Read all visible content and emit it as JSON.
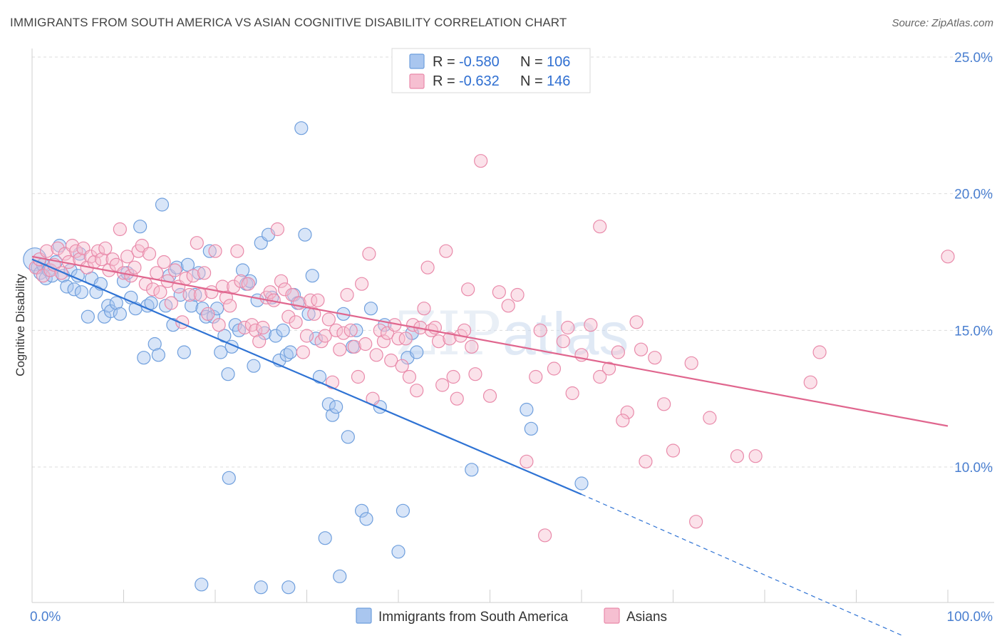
{
  "title": "IMMIGRANTS FROM SOUTH AMERICA VS ASIAN COGNITIVE DISABILITY CORRELATION CHART",
  "source": "Source: ZipAtlas.com",
  "watermark": {
    "zip": "ZIP",
    "atlas": "atlas"
  },
  "colors": {
    "blue": "#6f9fdd",
    "blue_fill": "#a9c6ef",
    "blue_line": "#2f73d4",
    "pink": "#e98aaa",
    "pink_fill": "#f6bfd1",
    "pink_line": "#e0668e",
    "grid": "#dcdcdc",
    "tick_text": "#4a7fd0"
  },
  "legend": {
    "rows": [
      {
        "r_label": "R =",
        "r_value": "-0.580",
        "n_label": "N =",
        "n_value": "106"
      },
      {
        "r_label": "R =",
        "r_value": "-0.632",
        "n_label": "N =",
        "n_value": "146"
      }
    ]
  },
  "chart_data": {
    "type": "scatter",
    "title": "IMMIGRANTS FROM SOUTH AMERICA VS ASIAN COGNITIVE DISABILITY CORRELATION CHART",
    "xlabel": "",
    "ylabel": "Cognitive Disability",
    "xlim": [
      0,
      100
    ],
    "ylim": [
      5.5,
      26.0
    ],
    "x_tick_labels": [
      "0.0%",
      "100.0%"
    ],
    "y_ticks": [
      10,
      15,
      20,
      25
    ],
    "y_tick_labels": [
      "10.0%",
      "15.0%",
      "20.0%",
      "25.0%"
    ],
    "grid": "horizontal dashed",
    "legend_position": "top-center",
    "series": [
      {
        "name": "Immigrants from South America",
        "color": "#6f9fdd",
        "r": -0.58,
        "n": 106,
        "trend": {
          "x0": 0,
          "y0": 17.6,
          "x1": 60,
          "y1": 9.0,
          "dashed_to_x": 100,
          "dashed_to_y": 3.1
        },
        "points": [
          [
            0.3,
            17.6
          ],
          [
            0.6,
            17.3
          ],
          [
            0.9,
            17.1
          ],
          [
            1.2,
            17.4
          ],
          [
            1.5,
            16.9
          ],
          [
            1.8,
            17.2
          ],
          [
            2.2,
            17.0
          ],
          [
            2.6,
            17.5
          ],
          [
            3.0,
            18.1
          ],
          [
            3.4,
            17.0
          ],
          [
            3.8,
            16.6
          ],
          [
            4.2,
            17.2
          ],
          [
            4.6,
            16.5
          ],
          [
            5.0,
            17.0
          ],
          [
            5.4,
            16.4
          ],
          [
            5.2,
            17.8
          ],
          [
            6.1,
            15.5
          ],
          [
            6.5,
            16.9
          ],
          [
            7.0,
            16.4
          ],
          [
            7.5,
            16.7
          ],
          [
            7.9,
            15.5
          ],
          [
            8.3,
            15.9
          ],
          [
            8.6,
            15.7
          ],
          [
            9.2,
            16.0
          ],
          [
            9.6,
            15.6
          ],
          [
            10.0,
            16.8
          ],
          [
            10.4,
            17.1
          ],
          [
            10.8,
            16.2
          ],
          [
            11.3,
            15.8
          ],
          [
            11.8,
            18.8
          ],
          [
            12.2,
            14.0
          ],
          [
            12.6,
            15.9
          ],
          [
            13.0,
            16.0
          ],
          [
            13.4,
            14.5
          ],
          [
            13.8,
            14.1
          ],
          [
            14.2,
            19.6
          ],
          [
            14.6,
            15.9
          ],
          [
            15.0,
            17.0
          ],
          [
            15.4,
            15.2
          ],
          [
            15.8,
            17.3
          ],
          [
            16.2,
            16.3
          ],
          [
            16.6,
            14.2
          ],
          [
            17.0,
            17.4
          ],
          [
            17.4,
            15.9
          ],
          [
            17.8,
            16.3
          ],
          [
            18.2,
            17.1
          ],
          [
            18.6,
            15.8
          ],
          [
            19.0,
            15.5
          ],
          [
            19.4,
            17.9
          ],
          [
            19.8,
            15.5
          ],
          [
            20.2,
            15.8
          ],
          [
            20.6,
            14.2
          ],
          [
            21.0,
            14.8
          ],
          [
            21.4,
            13.4
          ],
          [
            21.8,
            14.4
          ],
          [
            22.2,
            15.2
          ],
          [
            22.6,
            15.0
          ],
          [
            23.0,
            17.2
          ],
          [
            23.4,
            16.7
          ],
          [
            23.8,
            16.8
          ],
          [
            24.2,
            13.7
          ],
          [
            24.6,
            16.1
          ],
          [
            25.0,
            18.2
          ],
          [
            25.4,
            14.9
          ],
          [
            25.8,
            18.5
          ],
          [
            26.2,
            16.2
          ],
          [
            26.6,
            14.8
          ],
          [
            27.0,
            13.9
          ],
          [
            27.4,
            15.0
          ],
          [
            27.8,
            14.1
          ],
          [
            28.2,
            14.2
          ],
          [
            28.6,
            16.3
          ],
          [
            29.0,
            16.0
          ],
          [
            29.4,
            22.4
          ],
          [
            29.8,
            18.5
          ],
          [
            30.2,
            15.6
          ],
          [
            30.6,
            17.0
          ],
          [
            31.0,
            14.7
          ],
          [
            31.4,
            13.3
          ],
          [
            32.0,
            7.4
          ],
          [
            32.4,
            12.3
          ],
          [
            32.8,
            11.9
          ],
          [
            33.2,
            12.2
          ],
          [
            33.6,
            6.0
          ],
          [
            34.0,
            15.6
          ],
          [
            34.5,
            11.1
          ],
          [
            35.0,
            14.4
          ],
          [
            35.4,
            15.0
          ],
          [
            36.0,
            8.4
          ],
          [
            36.5,
            8.1
          ],
          [
            37.0,
            15.8
          ],
          [
            38.0,
            12.2
          ],
          [
            38.5,
            15.2
          ],
          [
            40.0,
            6.9
          ],
          [
            40.5,
            8.4
          ],
          [
            41.0,
            14.0
          ],
          [
            41.5,
            14.9
          ],
          [
            42.0,
            14.2
          ],
          [
            48.0,
            9.9
          ],
          [
            54.0,
            12.1
          ],
          [
            54.5,
            11.4
          ],
          [
            60.0,
            9.4
          ],
          [
            18.5,
            5.7
          ],
          [
            21.5,
            9.6
          ],
          [
            25.0,
            5.6
          ],
          [
            28.0,
            5.6
          ]
        ]
      },
      {
        "name": "Asians",
        "color": "#e98aaa",
        "r": -0.632,
        "n": 146,
        "trend": {
          "x0": 0,
          "y0": 17.7,
          "x1": 100,
          "y1": 11.5
        },
        "points": [
          [
            0.4,
            17.3
          ],
          [
            0.8,
            17.6
          ],
          [
            1.2,
            17.0
          ],
          [
            1.6,
            17.9
          ],
          [
            2.0,
            17.2
          ],
          [
            2.4,
            17.4
          ],
          [
            2.8,
            18.0
          ],
          [
            3.2,
            17.1
          ],
          [
            3.6,
            17.8
          ],
          [
            4.0,
            17.5
          ],
          [
            4.4,
            18.1
          ],
          [
            4.8,
            17.9
          ],
          [
            5.2,
            17.6
          ],
          [
            5.6,
            18.0
          ],
          [
            6.0,
            17.3
          ],
          [
            6.4,
            17.7
          ],
          [
            6.8,
            17.5
          ],
          [
            7.2,
            17.9
          ],
          [
            7.6,
            17.6
          ],
          [
            8.0,
            18.0
          ],
          [
            8.4,
            17.2
          ],
          [
            8.8,
            17.6
          ],
          [
            9.2,
            17.4
          ],
          [
            9.6,
            18.7
          ],
          [
            10.0,
            17.1
          ],
          [
            10.4,
            17.7
          ],
          [
            10.8,
            17.0
          ],
          [
            11.2,
            17.3
          ],
          [
            11.6,
            17.9
          ],
          [
            12.0,
            18.1
          ],
          [
            12.4,
            16.7
          ],
          [
            12.8,
            17.8
          ],
          [
            13.2,
            16.5
          ],
          [
            13.6,
            17.1
          ],
          [
            14.0,
            16.4
          ],
          [
            14.4,
            17.5
          ],
          [
            14.8,
            16.8
          ],
          [
            15.2,
            16.0
          ],
          [
            15.6,
            17.2
          ],
          [
            16.0,
            16.6
          ],
          [
            16.4,
            15.3
          ],
          [
            16.8,
            16.9
          ],
          [
            17.2,
            16.3
          ],
          [
            17.6,
            17.0
          ],
          [
            18.0,
            18.2
          ],
          [
            18.4,
            16.3
          ],
          [
            18.8,
            17.1
          ],
          [
            19.2,
            15.6
          ],
          [
            19.6,
            16.4
          ],
          [
            20.0,
            17.9
          ],
          [
            20.4,
            15.2
          ],
          [
            20.8,
            16.6
          ],
          [
            21.2,
            16.2
          ],
          [
            21.6,
            15.9
          ],
          [
            22.0,
            16.6
          ],
          [
            22.4,
            17.9
          ],
          [
            22.8,
            16.8
          ],
          [
            23.2,
            15.1
          ],
          [
            23.6,
            16.7
          ],
          [
            24.0,
            15.2
          ],
          [
            24.4,
            15.0
          ],
          [
            24.8,
            14.6
          ],
          [
            25.2,
            15.1
          ],
          [
            25.6,
            16.2
          ],
          [
            26.0,
            16.4
          ],
          [
            26.4,
            16.1
          ],
          [
            26.8,
            18.7
          ],
          [
            27.2,
            16.8
          ],
          [
            27.6,
            16.5
          ],
          [
            28.0,
            15.5
          ],
          [
            28.4,
            16.3
          ],
          [
            28.8,
            15.3
          ],
          [
            29.2,
            16.0
          ],
          [
            29.6,
            14.2
          ],
          [
            30.0,
            14.8
          ],
          [
            30.4,
            16.1
          ],
          [
            30.8,
            15.6
          ],
          [
            31.2,
            16.1
          ],
          [
            31.6,
            14.6
          ],
          [
            32.0,
            14.8
          ],
          [
            32.4,
            15.4
          ],
          [
            32.8,
            13.1
          ],
          [
            33.2,
            15.0
          ],
          [
            33.6,
            14.3
          ],
          [
            34.0,
            14.9
          ],
          [
            34.4,
            16.3
          ],
          [
            34.8,
            15.0
          ],
          [
            35.2,
            14.4
          ],
          [
            35.6,
            13.3
          ],
          [
            36.0,
            16.7
          ],
          [
            36.4,
            14.5
          ],
          [
            36.8,
            17.8
          ],
          [
            37.2,
            12.5
          ],
          [
            37.6,
            14.1
          ],
          [
            38.0,
            15.0
          ],
          [
            38.4,
            14.6
          ],
          [
            38.8,
            14.9
          ],
          [
            39.2,
            13.9
          ],
          [
            39.6,
            15.2
          ],
          [
            40.0,
            14.7
          ],
          [
            40.4,
            13.7
          ],
          [
            40.8,
            14.7
          ],
          [
            41.2,
            13.3
          ],
          [
            41.6,
            15.2
          ],
          [
            42.0,
            12.8
          ],
          [
            42.4,
            15.1
          ],
          [
            42.8,
            15.8
          ],
          [
            43.2,
            17.3
          ],
          [
            43.6,
            15.0
          ],
          [
            44.0,
            15.1
          ],
          [
            44.4,
            14.6
          ],
          [
            44.8,
            13.0
          ],
          [
            45.2,
            17.9
          ],
          [
            45.6,
            14.7
          ],
          [
            46.0,
            13.3
          ],
          [
            46.4,
            12.5
          ],
          [
            46.8,
            14.8
          ],
          [
            47.2,
            15.0
          ],
          [
            47.6,
            16.5
          ],
          [
            48.0,
            14.4
          ],
          [
            48.4,
            13.4
          ],
          [
            49.0,
            21.2
          ],
          [
            50.0,
            12.6
          ],
          [
            51.0,
            16.4
          ],
          [
            52.0,
            15.9
          ],
          [
            53.0,
            16.3
          ],
          [
            54.0,
            10.2
          ],
          [
            55.0,
            13.3
          ],
          [
            56.0,
            7.5
          ],
          [
            57.0,
            13.6
          ],
          [
            58.0,
            14.6
          ],
          [
            59.0,
            12.7
          ],
          [
            60.0,
            14.1
          ],
          [
            61.0,
            15.2
          ],
          [
            62.0,
            18.8
          ],
          [
            63.0,
            13.6
          ],
          [
            64.0,
            14.2
          ],
          [
            65.0,
            12.0
          ],
          [
            66.0,
            15.3
          ],
          [
            67.0,
            10.2
          ],
          [
            68.0,
            14.0
          ],
          [
            69.0,
            12.3
          ],
          [
            70.0,
            10.6
          ],
          [
            72.0,
            13.8
          ],
          [
            74.0,
            11.8
          ],
          [
            77.0,
            10.4
          ],
          [
            79.0,
            10.4
          ],
          [
            85.0,
            13.1
          ],
          [
            86.0,
            14.2
          ],
          [
            100.0,
            17.7
          ],
          [
            62.0,
            13.3
          ],
          [
            64.5,
            11.7
          ],
          [
            66.5,
            14.3
          ],
          [
            72.5,
            8.0
          ],
          [
            58.5,
            15.1
          ],
          [
            55.5,
            15.0
          ]
        ]
      }
    ]
  }
}
